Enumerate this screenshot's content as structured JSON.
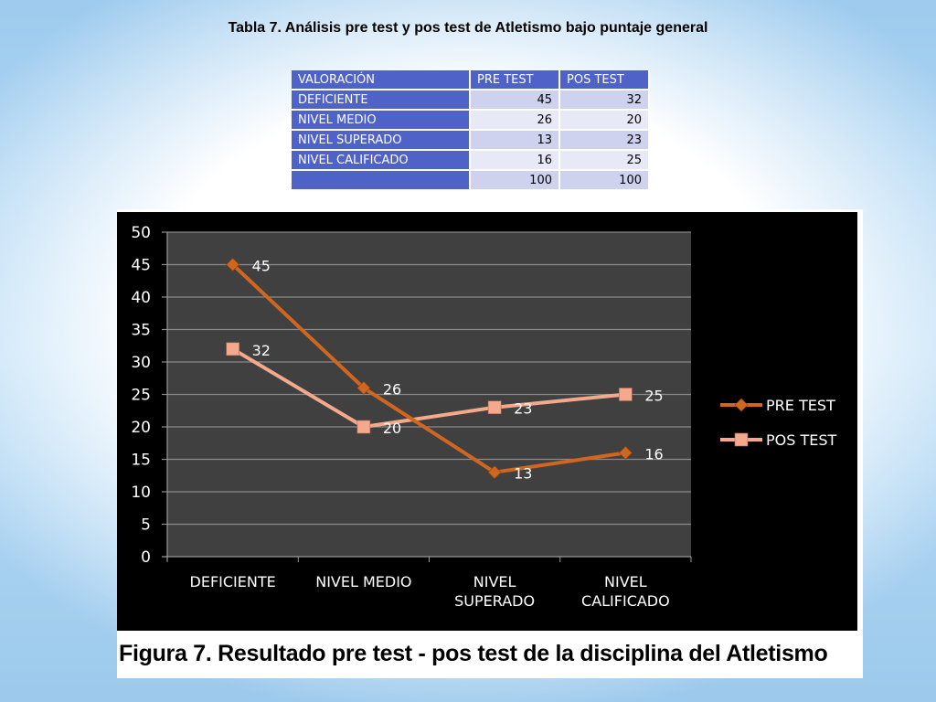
{
  "title": "Tabla 7. Análisis pre test y pos test de Atletismo bajo puntaje general",
  "table": {
    "headers": [
      "VALORACIÓN",
      "PRE TEST",
      "POS TEST"
    ],
    "rows": [
      {
        "label": "DEFICIENTE",
        "pre": "45",
        "pos": "32"
      },
      {
        "label": "NIVEL MEDIO",
        "pre": "26",
        "pos": "20"
      },
      {
        "label": "NIVEL SUPERADO",
        "pre": "13",
        "pos": "23"
      },
      {
        "label": "NIVEL CALIFICADO",
        "pre": "16",
        "pos": "25"
      },
      {
        "label": "",
        "pre": "100",
        "pos": "100"
      }
    ]
  },
  "chart_data": {
    "type": "line",
    "categories": [
      [
        "DEFICIENTE"
      ],
      [
        "NIVEL MEDIO"
      ],
      [
        "NIVEL",
        "SUPERADO"
      ],
      [
        "NIVEL",
        "CALIFICADO"
      ]
    ],
    "series": [
      {
        "name": "PRE TEST",
        "values": [
          45,
          26,
          13,
          16
        ],
        "color": "#d0661f",
        "marker": "diamond"
      },
      {
        "name": "POS TEST",
        "values": [
          32,
          20,
          23,
          25
        ],
        "color": "#f4a98d",
        "marker": "square"
      }
    ],
    "ylim": [
      0,
      50
    ],
    "yticks": [
      0,
      5,
      10,
      15,
      20,
      25,
      30,
      35,
      40,
      45,
      50
    ],
    "grid": true,
    "legend": "right",
    "plot_background": "#404040",
    "background": "#000000"
  },
  "caption": "Figura 7. Resultado  pre test - pos test de la disciplina  del Atletismo"
}
